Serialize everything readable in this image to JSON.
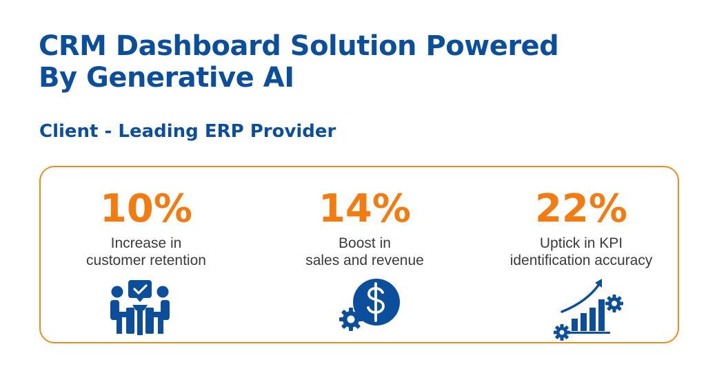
{
  "title": {
    "line1": "CRM Dashboard Solution Powered",
    "line2": "By Generative AI"
  },
  "subtitle": "Client - Leading ERP Provider",
  "colors": {
    "primary_blue": "#0b4f9c",
    "accent_orange": "#f37c12",
    "border_orange": "#f28a1a",
    "text_gray": "#3a3a3a"
  },
  "stats": [
    {
      "value": "10%",
      "line1": "Increase in",
      "line2": "customer retention",
      "icon": "team-meeting-check-icon"
    },
    {
      "value": "14%",
      "line1": "Boost in",
      "line2": "sales and revenue",
      "icon": "dollar-gear-icon"
    },
    {
      "value": "22%",
      "line1": "Uptick in KPI",
      "line2": "identification accuracy",
      "icon": "growth-chart-gears-icon"
    }
  ]
}
